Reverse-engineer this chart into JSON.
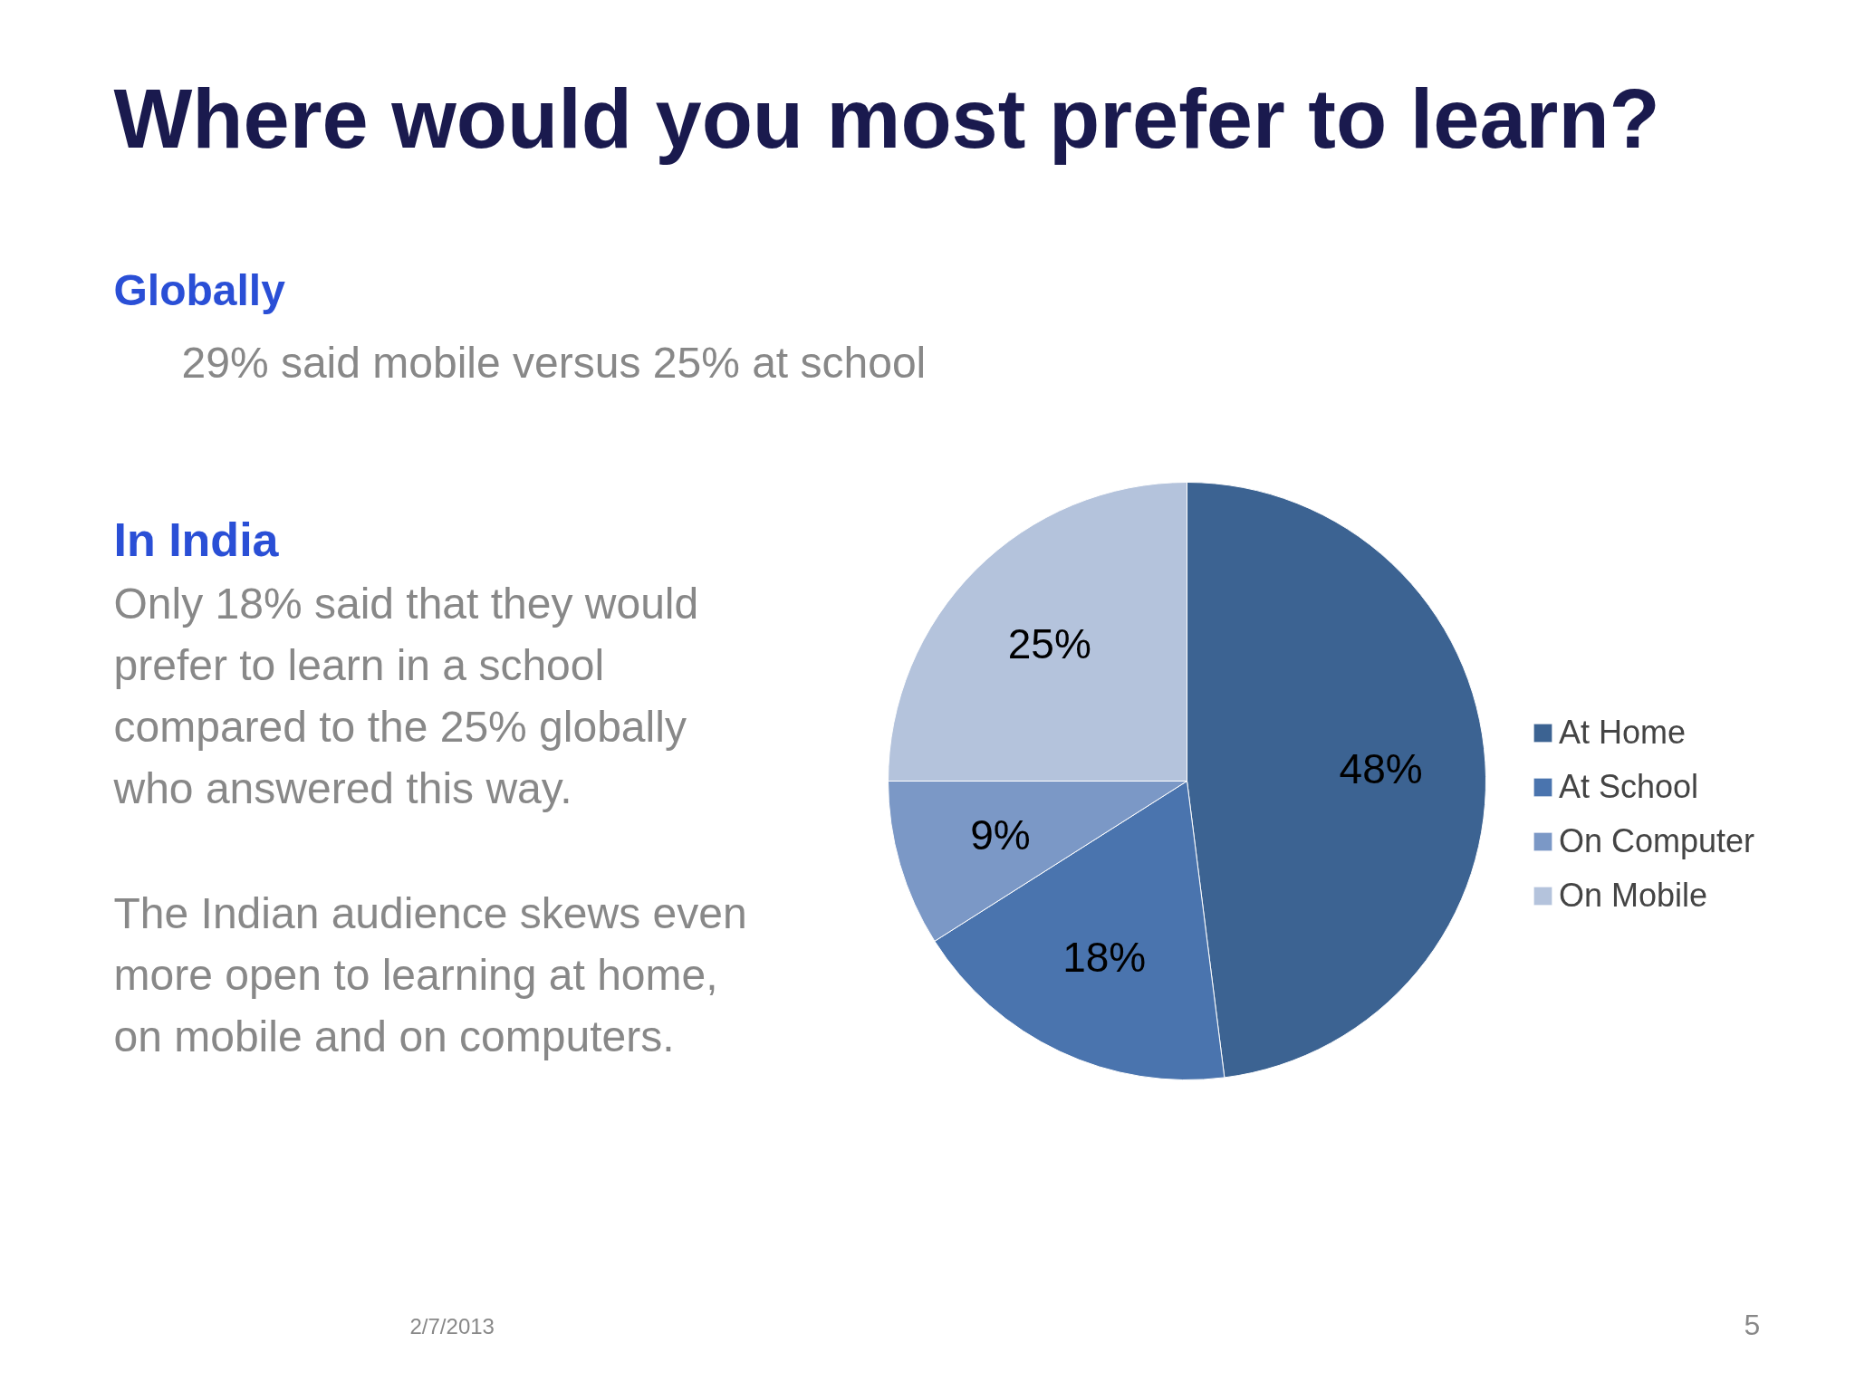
{
  "chart_data": {
    "type": "pie",
    "title": "Where would you most prefer to learn?",
    "categories": [
      "At Home",
      "At School",
      "On Computer",
      "On Mobile"
    ],
    "values": [
      48,
      18,
      9,
      25
    ],
    "colors": [
      "#3c6392",
      "#4a74ae",
      "#7b98c6",
      "#b4c3dc"
    ],
    "value_labels": [
      "48%",
      "18%",
      "9%",
      "25%"
    ],
    "legend": "right",
    "annotations": [
      "Globally",
      "29% said mobile versus 25% at school",
      "In India",
      "Only 18% said that they would prefer to learn in a school compared to the 25% globally who answered this way.",
      "The Indian audience skews even more open to learning at home, on mobile and on computers.",
      "2/7/2013",
      "5"
    ]
  }
}
